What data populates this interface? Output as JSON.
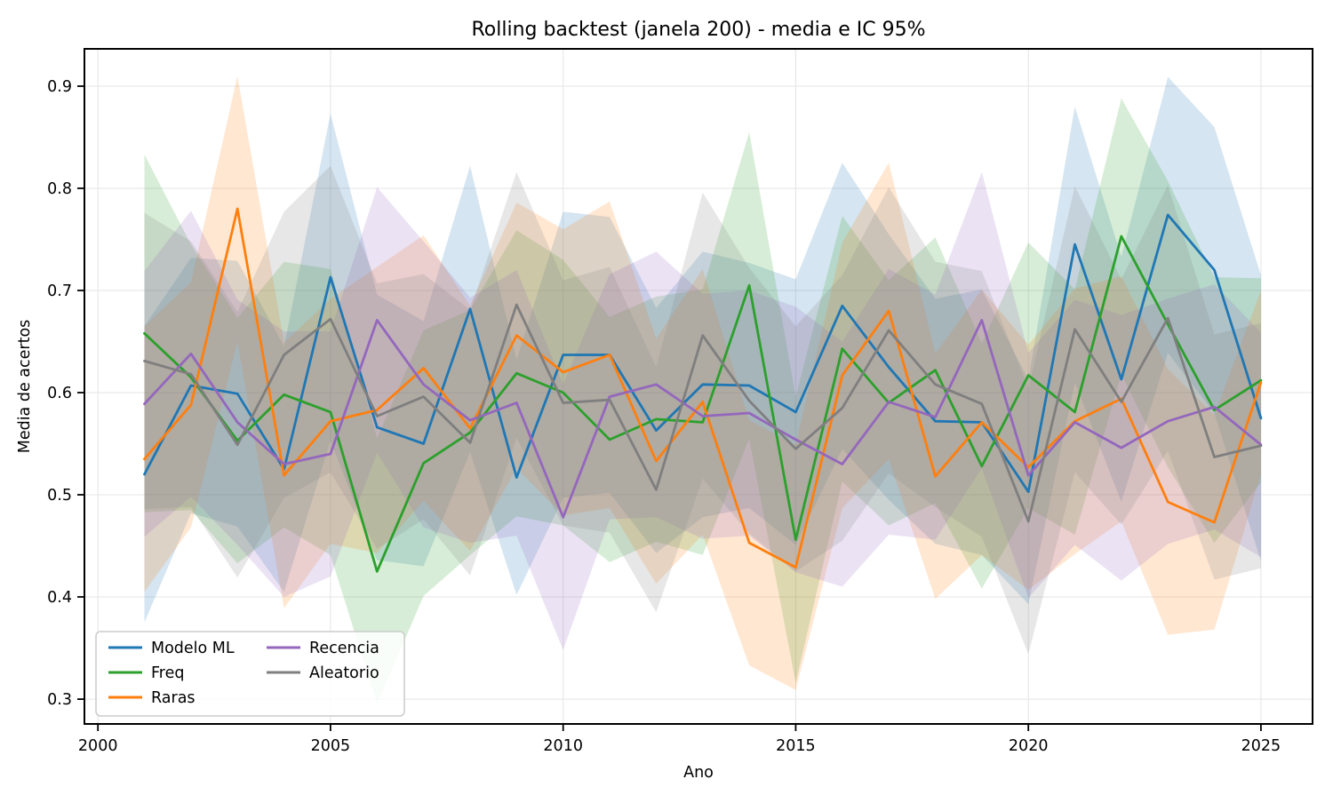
{
  "chart_data": {
    "type": "line",
    "title": "Rolling backtest (janela 200) - media e IC 95%",
    "xlabel": "Ano",
    "ylabel": "Media de acertos",
    "grid": true,
    "legend_position": "lower left",
    "legend_columns": 2,
    "ci_level": "IC 95%",
    "xlim": [
      1999.71,
      2026.11
    ],
    "ylim": [
      0.2757,
      0.9365
    ],
    "xticks": [
      2000,
      2005,
      2010,
      2015,
      2020,
      2025
    ],
    "yticks": [
      0.3,
      0.4,
      0.5,
      0.6,
      0.7,
      0.8,
      0.9
    ],
    "x": [
      2001,
      2002,
      2003,
      2004,
      2005,
      2006,
      2007,
      2008,
      2009,
      2010,
      2011,
      2012,
      2013,
      2014,
      2015,
      2016,
      2017,
      2018,
      2019,
      2020,
      2021,
      2022,
      2023,
      2024,
      2025
    ],
    "series": [
      {
        "name": "Modelo ML",
        "color": "#1f77b4",
        "values": [
          0.52,
          0.607,
          0.599,
          0.525,
          0.713,
          0.566,
          0.55,
          0.682,
          0.517,
          0.637,
          0.637,
          0.563,
          0.608,
          0.607,
          0.581,
          0.685,
          0.625,
          0.572,
          0.571,
          0.503,
          0.745,
          0.613,
          0.774,
          0.72,
          0.575
        ],
        "band_halfwidth": [
          0.145,
          0.125,
          0.13,
          0.12,
          0.16,
          0.13,
          0.12,
          0.14,
          0.115,
          0.14,
          0.135,
          0.12,
          0.13,
          0.12,
          0.13,
          0.14,
          0.13,
          0.12,
          0.13,
          0.11,
          0.135,
          0.12,
          0.135,
          0.14,
          0.14
        ]
      },
      {
        "name": "Freq",
        "color": "#2ca02c",
        "values": [
          0.658,
          0.615,
          0.553,
          0.598,
          0.581,
          0.425,
          0.531,
          0.561,
          0.619,
          0.6,
          0.554,
          0.574,
          0.571,
          0.705,
          0.456,
          0.643,
          0.59,
          0.622,
          0.528,
          0.617,
          0.581,
          0.753,
          0.667,
          0.583,
          0.612
        ],
        "band_halfwidth": [
          0.175,
          0.13,
          0.12,
          0.13,
          0.14,
          0.13,
          0.13,
          0.12,
          0.14,
          0.13,
          0.12,
          0.12,
          0.13,
          0.15,
          0.14,
          0.13,
          0.12,
          0.13,
          0.12,
          0.13,
          0.12,
          0.135,
          0.14,
          0.13,
          0.1
        ]
      },
      {
        "name": "Raras",
        "color": "#ff7f0e",
        "values": [
          0.535,
          0.588,
          0.78,
          0.519,
          0.572,
          0.583,
          0.624,
          0.565,
          0.656,
          0.62,
          0.637,
          0.533,
          0.591,
          0.453,
          0.429,
          0.617,
          0.68,
          0.518,
          0.571,
          0.527,
          0.572,
          0.594,
          0.493,
          0.473,
          0.61
        ],
        "band_halfwidth": [
          0.13,
          0.12,
          0.13,
          0.13,
          0.12,
          0.14,
          0.13,
          0.12,
          0.13,
          0.14,
          0.15,
          0.12,
          0.13,
          0.12,
          0.12,
          0.13,
          0.145,
          0.12,
          0.13,
          0.12,
          0.13,
          0.12,
          0.13,
          0.105,
          0.09
        ]
      },
      {
        "name": "Recencia",
        "color": "#9467bd",
        "values": [
          0.589,
          0.638,
          0.571,
          0.53,
          0.54,
          0.671,
          0.608,
          0.573,
          0.59,
          0.478,
          0.596,
          0.608,
          0.577,
          0.58,
          0.554,
          0.53,
          0.591,
          0.576,
          0.671,
          0.519,
          0.571,
          0.546,
          0.572,
          0.586,
          0.549
        ],
        "band_halfwidth": [
          0.13,
          0.14,
          0.12,
          0.13,
          0.12,
          0.13,
          0.14,
          0.12,
          0.13,
          0.13,
          0.12,
          0.13,
          0.12,
          0.12,
          0.13,
          0.12,
          0.13,
          0.12,
          0.145,
          0.12,
          0.12,
          0.13,
          0.12,
          0.12,
          0.11
        ]
      },
      {
        "name": "Aleatorio",
        "color": "#7f7f7f",
        "values": [
          0.631,
          0.618,
          0.549,
          0.637,
          0.672,
          0.577,
          0.596,
          0.551,
          0.686,
          0.59,
          0.593,
          0.505,
          0.656,
          0.592,
          0.545,
          0.585,
          0.661,
          0.608,
          0.589,
          0.474,
          0.662,
          0.591,
          0.673,
          0.537,
          0.548
        ],
        "band_halfwidth": [
          0.145,
          0.13,
          0.13,
          0.14,
          0.15,
          0.13,
          0.12,
          0.13,
          0.13,
          0.12,
          0.13,
          0.12,
          0.14,
          0.13,
          0.12,
          0.13,
          0.14,
          0.12,
          0.13,
          0.13,
          0.14,
          0.12,
          0.13,
          0.12,
          0.12
        ]
      }
    ],
    "style": {
      "grid_color": "#e4e4e4",
      "spine_color": "#000000",
      "band_opacity": 0.19,
      "line_width": 2.8,
      "legend_border_color": "#cccccc",
      "legend_bg": "#ffffff"
    }
  }
}
